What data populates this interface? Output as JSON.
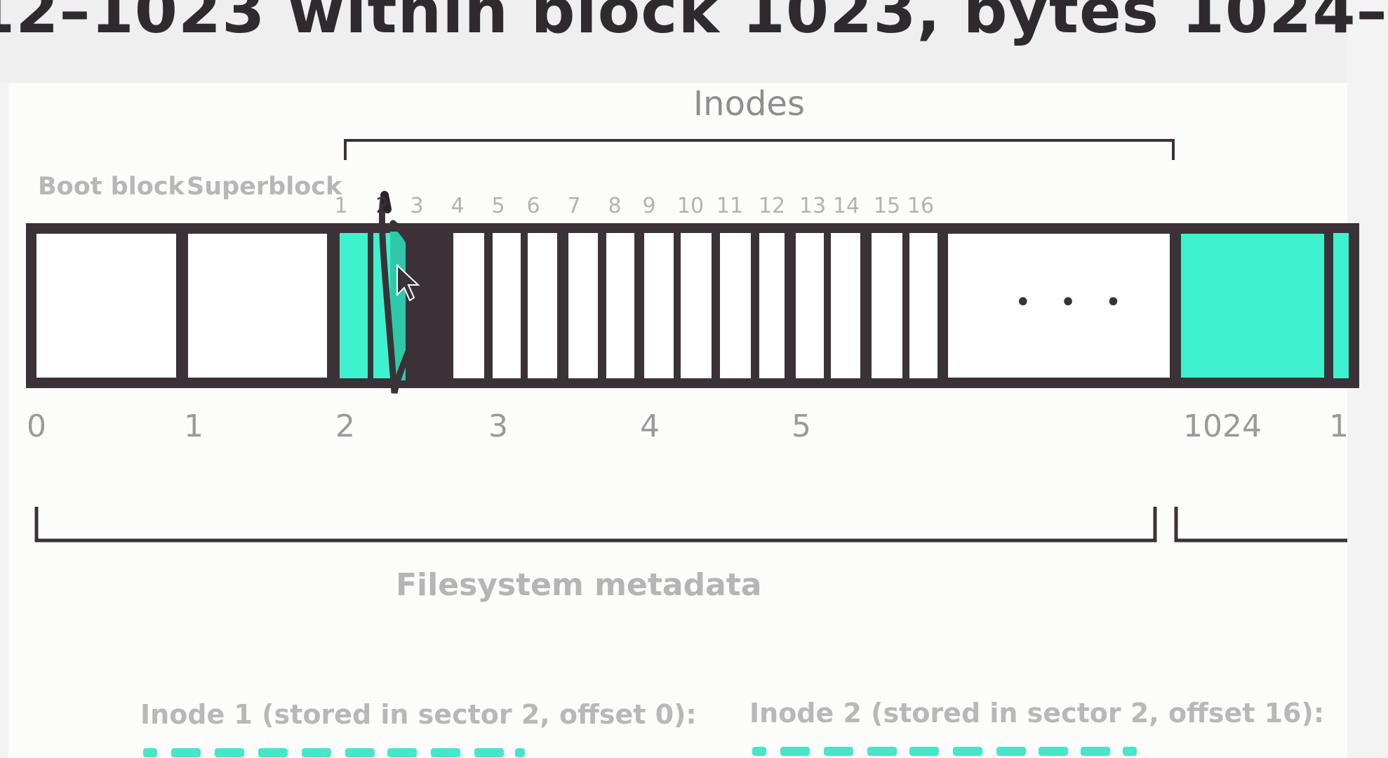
{
  "header": {
    "title": "12–1023 within block 1023, bytes 1024–"
  },
  "diagram": {
    "inodes_label": "Inodes",
    "boot_block_label": "Boot block",
    "superblock_label": "Superblock",
    "inode_slot_numbers": [
      "1",
      "2",
      "3",
      "4",
      "5",
      "6",
      "7",
      "8",
      "9",
      "10",
      "11",
      "12",
      "13",
      "14",
      "15",
      "16"
    ],
    "sector_numbers": [
      "0",
      "1",
      "2",
      "3",
      "4",
      "5",
      "1024",
      "1"
    ],
    "ellipsis": "• • •",
    "metadata_label": "Filesystem metadata",
    "colors": {
      "teal": "#3ff2cf",
      "outline": "#3a3236",
      "label": "#9a9a9a"
    }
  },
  "inodes": [
    {
      "caption": "Inode 1 (stored in sector 2, offset 0):"
    },
    {
      "caption": "Inode 2 (stored in sector 2, offset 16):"
    }
  ]
}
